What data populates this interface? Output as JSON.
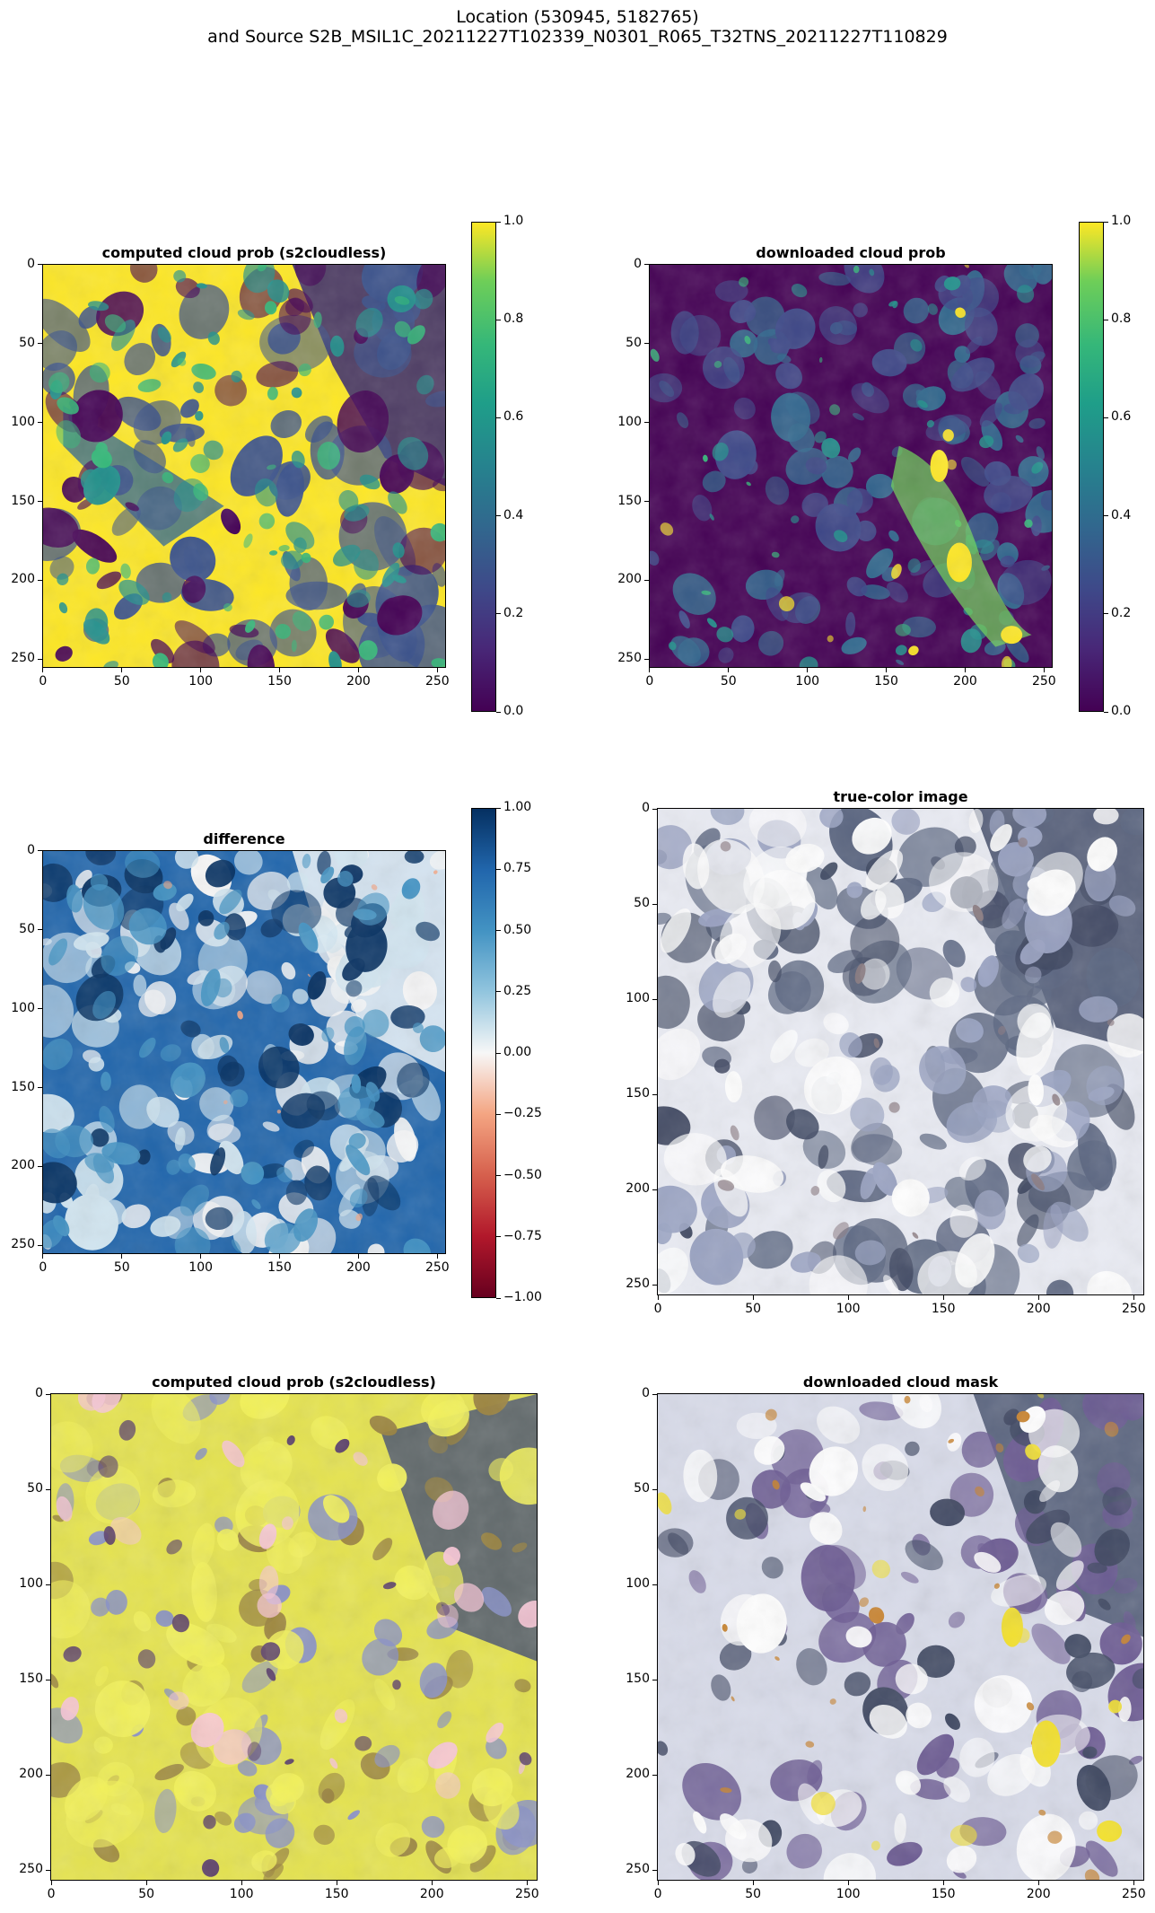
{
  "figure": {
    "suptitle_line1": "Location (530945, 5182765)",
    "suptitle_line2": "and Source S2B_MSIL1C_20211227T102339_N0301_R065_T32TNS_20211227T110829"
  },
  "chart_data": [
    {
      "type": "heatmap",
      "id": "computed-prob",
      "title": "computed cloud prob (s2cloudless)",
      "xlim": [
        0,
        255
      ],
      "ylim": [
        255,
        0
      ],
      "xticks": [
        "0",
        "50",
        "100",
        "150",
        "200",
        "250"
      ],
      "yticks": [
        "0",
        "50",
        "100",
        "150",
        "200",
        "250"
      ],
      "colormap": "viridis",
      "colorbar": {
        "range": [
          0,
          1
        ],
        "ticks": [
          "0.0",
          "0.2",
          "0.4",
          "0.6",
          "0.8",
          "1.0"
        ]
      }
    },
    {
      "type": "heatmap",
      "id": "downloaded-prob",
      "title": "downloaded cloud prob",
      "xlim": [
        0,
        255
      ],
      "ylim": [
        255,
        0
      ],
      "xticks": [
        "0",
        "50",
        "100",
        "150",
        "200",
        "250"
      ],
      "yticks": [
        "0",
        "50",
        "100",
        "150",
        "200",
        "250"
      ],
      "colormap": "viridis",
      "colorbar": {
        "range": [
          0,
          1
        ],
        "ticks": [
          "0.0",
          "0.2",
          "0.4",
          "0.6",
          "0.8",
          "1.0"
        ]
      }
    },
    {
      "type": "heatmap",
      "id": "difference",
      "title": "difference",
      "xlim": [
        0,
        255
      ],
      "ylim": [
        255,
        0
      ],
      "xticks": [
        "0",
        "50",
        "100",
        "150",
        "200",
        "250"
      ],
      "yticks": [
        "0",
        "50",
        "100",
        "150",
        "200",
        "250"
      ],
      "colormap": "RdBu",
      "colorbar": {
        "range": [
          -1,
          1
        ],
        "ticks": [
          "−1.00",
          "−0.75",
          "−0.50",
          "−0.25",
          "0.00",
          "0.25",
          "0.50",
          "0.75",
          "1.00"
        ]
      }
    },
    {
      "type": "heatmap",
      "id": "true-color",
      "title": "true-color image",
      "xlim": [
        0,
        255
      ],
      "ylim": [
        255,
        0
      ],
      "xticks": [
        "0",
        "50",
        "100",
        "150",
        "200",
        "250"
      ],
      "yticks": [
        "0",
        "50",
        "100",
        "150",
        "200",
        "250"
      ]
    },
    {
      "type": "heatmap",
      "id": "computed-overlay",
      "title": "computed cloud prob (s2cloudless)",
      "xlim": [
        0,
        255
      ],
      "ylim": [
        255,
        0
      ],
      "xticks": [
        "0",
        "50",
        "100",
        "150",
        "200",
        "250"
      ],
      "yticks": [
        "0",
        "50",
        "100",
        "150",
        "200",
        "250"
      ]
    },
    {
      "type": "heatmap",
      "id": "downloaded-mask",
      "title": "downloaded cloud mask",
      "xlim": [
        0,
        255
      ],
      "ylim": [
        255,
        0
      ],
      "xticks": [
        "0",
        "50",
        "100",
        "150",
        "200",
        "250"
      ],
      "yticks": [
        "0",
        "50",
        "100",
        "150",
        "200",
        "250"
      ]
    }
  ],
  "colors": {
    "viridis_low": "#440154",
    "viridis_mid": "#21918c",
    "viridis_high": "#fde725",
    "rdbu_low": "#67001f",
    "rdbu_mid": "#f7f7f7",
    "rdbu_high": "#053061"
  }
}
